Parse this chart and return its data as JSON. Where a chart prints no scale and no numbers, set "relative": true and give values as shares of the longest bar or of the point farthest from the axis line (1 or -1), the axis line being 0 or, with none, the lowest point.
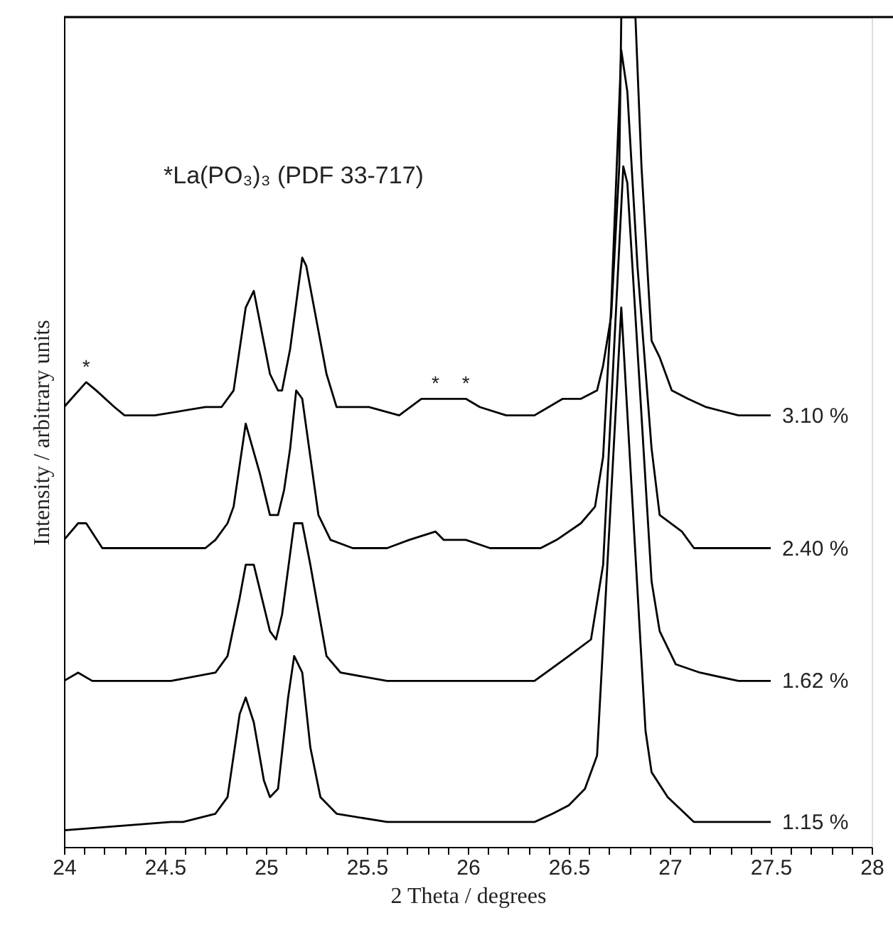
{
  "chart_data": {
    "type": "line",
    "relative": true,
    "xlabel": "2 Theta / degrees",
    "ylabel": "Intensity / arbitrary units",
    "xlim": [
      24,
      28
    ],
    "xticks": [
      24,
      {
        "value": 24.1,
        "label": null
      },
      {
        "value": 24.2,
        "label": null
      },
      {
        "value": 24.3,
        "label": null
      },
      {
        "value": 24.4,
        "label": null
      },
      24.5,
      {
        "value": 24.6,
        "label": null
      },
      {
        "value": 24.7,
        "label": null
      },
      {
        "value": 24.8,
        "label": null
      },
      {
        "value": 24.9,
        "label": null
      },
      25,
      {
        "value": 25.1,
        "label": null
      },
      {
        "value": 25.2,
        "label": null
      },
      {
        "value": 25.3,
        "label": null
      },
      {
        "value": 25.4,
        "label": null
      },
      25.5,
      {
        "value": 25.6,
        "label": null
      },
      {
        "value": 25.7,
        "label": null
      },
      {
        "value": 25.8,
        "label": null
      },
      {
        "value": 25.9,
        "label": null
      },
      26,
      {
        "value": 26.1,
        "label": null
      },
      {
        "value": 26.2,
        "label": null
      },
      {
        "value": 26.3,
        "label": null
      },
      {
        "value": 26.4,
        "label": null
      },
      26.5,
      {
        "value": 26.6,
        "label": null
      },
      {
        "value": 26.7,
        "label": null
      },
      {
        "value": 26.8,
        "label": null
      },
      {
        "value": 26.9,
        "label": null
      },
      27,
      {
        "value": 27.1,
        "label": null
      },
      {
        "value": 27.2,
        "label": null
      },
      {
        "value": 27.3,
        "label": null
      },
      {
        "value": 27.4,
        "label": null
      },
      27.5,
      {
        "value": 27.6,
        "label": null
      },
      {
        "value": 27.7,
        "label": null
      },
      {
        "value": 27.8,
        "label": null
      },
      {
        "value": 27.9,
        "label": null
      },
      28
    ],
    "grid": false,
    "marker": "none",
    "line_style": "solid",
    "series": [
      {
        "name": "3.10 %",
        "color": "#000000",
        "x": [
          24,
          24.11,
          24.16,
          24.25,
          24.3,
          24.45,
          24.7,
          24.78,
          24.84,
          24.9,
          24.94,
          25.02,
          25.06,
          25.08,
          25.12,
          25.18,
          25.2,
          25.3,
          25.35,
          25.51,
          25.66,
          25.77,
          25.84,
          25.91,
          25.95,
          25.99,
          26.06,
          26.19,
          26.33,
          26.47,
          26.56,
          26.64,
          26.67,
          26.71,
          26.75,
          26.76,
          26.83,
          26.86,
          26.91,
          26.95,
          27.01,
          27.09,
          27.18,
          27.34,
          27.5
        ],
        "values": [
          0.53,
          0.56,
          0.55,
          0.53,
          0.52,
          0.52,
          0.53,
          0.53,
          0.55,
          0.65,
          0.67,
          0.57,
          0.55,
          0.55,
          0.6,
          0.71,
          0.7,
          0.57,
          0.53,
          0.53,
          0.52,
          0.54,
          0.54,
          0.54,
          0.54,
          0.54,
          0.53,
          0.52,
          0.52,
          0.54,
          0.54,
          0.55,
          0.58,
          0.64,
          0.82,
          1.0,
          1.0,
          0.82,
          0.61,
          0.59,
          0.55,
          0.54,
          0.53,
          0.52,
          0.52
        ]
      },
      {
        "name": "2.40 %",
        "color": "#000000",
        "x": [
          24,
          24.07,
          24.11,
          24.19,
          24.28,
          24.53,
          24.61,
          24.7,
          24.75,
          24.81,
          24.84,
          24.9,
          24.97,
          25.02,
          25.06,
          25.09,
          25.12,
          25.15,
          25.18,
          25.22,
          25.26,
          25.32,
          25.43,
          25.6,
          25.71,
          25.84,
          25.88,
          25.99,
          26.11,
          26.22,
          26.36,
          26.44,
          26.56,
          26.63,
          26.67,
          26.71,
          26.76,
          26.79,
          26.84,
          26.91,
          26.95,
          27.06,
          27.12,
          27.23,
          27.5
        ],
        "values": [
          0.37,
          0.39,
          0.39,
          0.36,
          0.36,
          0.36,
          0.36,
          0.36,
          0.37,
          0.39,
          0.41,
          0.51,
          0.45,
          0.4,
          0.4,
          0.43,
          0.48,
          0.55,
          0.54,
          0.47,
          0.4,
          0.37,
          0.36,
          0.36,
          0.37,
          0.38,
          0.37,
          0.37,
          0.36,
          0.36,
          0.36,
          0.37,
          0.39,
          0.41,
          0.47,
          0.65,
          0.96,
          0.91,
          0.7,
          0.48,
          0.4,
          0.38,
          0.36,
          0.36,
          0.36
        ]
      },
      {
        "name": "1.62 %",
        "color": "#000000",
        "x": [
          24,
          24.07,
          24.14,
          24.53,
          24.75,
          24.81,
          24.87,
          24.9,
          24.94,
          24.98,
          25.02,
          25.05,
          25.08,
          25.14,
          25.18,
          25.22,
          25.3,
          25.37,
          25.6,
          25.94,
          26.33,
          26.5,
          26.61,
          26.67,
          26.77,
          26.79,
          26.91,
          26.95,
          27.03,
          27.15,
          27.34,
          27.5
        ],
        "values": [
          0.2,
          0.21,
          0.2,
          0.2,
          0.21,
          0.23,
          0.3,
          0.34,
          0.34,
          0.3,
          0.26,
          0.25,
          0.28,
          0.39,
          0.39,
          0.34,
          0.23,
          0.21,
          0.2,
          0.2,
          0.2,
          0.23,
          0.25,
          0.34,
          0.82,
          0.8,
          0.32,
          0.26,
          0.22,
          0.21,
          0.2,
          0.2
        ]
      },
      {
        "name": "1.15 %",
        "color": "#000000",
        "x": [
          24,
          24.53,
          24.59,
          24.75,
          24.81,
          24.87,
          24.9,
          24.94,
          24.99,
          25.02,
          25.06,
          25.11,
          25.14,
          25.18,
          25.22,
          25.27,
          25.35,
          25.6,
          25.94,
          26.33,
          26.42,
          26.5,
          26.58,
          26.64,
          26.76,
          26.88,
          26.91,
          26.99,
          27.12,
          27.34,
          27.5
        ],
        "values": [
          0.02,
          0.03,
          0.03,
          0.04,
          0.06,
          0.16,
          0.18,
          0.15,
          0.08,
          0.06,
          0.07,
          0.18,
          0.23,
          0.21,
          0.12,
          0.06,
          0.04,
          0.03,
          0.03,
          0.03,
          0.04,
          0.05,
          0.07,
          0.11,
          0.65,
          0.14,
          0.09,
          0.06,
          0.03,
          0.03,
          0.03
        ]
      }
    ],
    "annotations": [
      "*La(PO₃)₃ (PDF 33-717)",
      {
        "text": "*",
        "x": 24.11,
        "y": 0.56
      },
      {
        "text": "*",
        "x": 25.84,
        "y": 0.54
      },
      {
        "text": "*",
        "x": 25.99,
        "y": 0.54
      }
    ]
  }
}
